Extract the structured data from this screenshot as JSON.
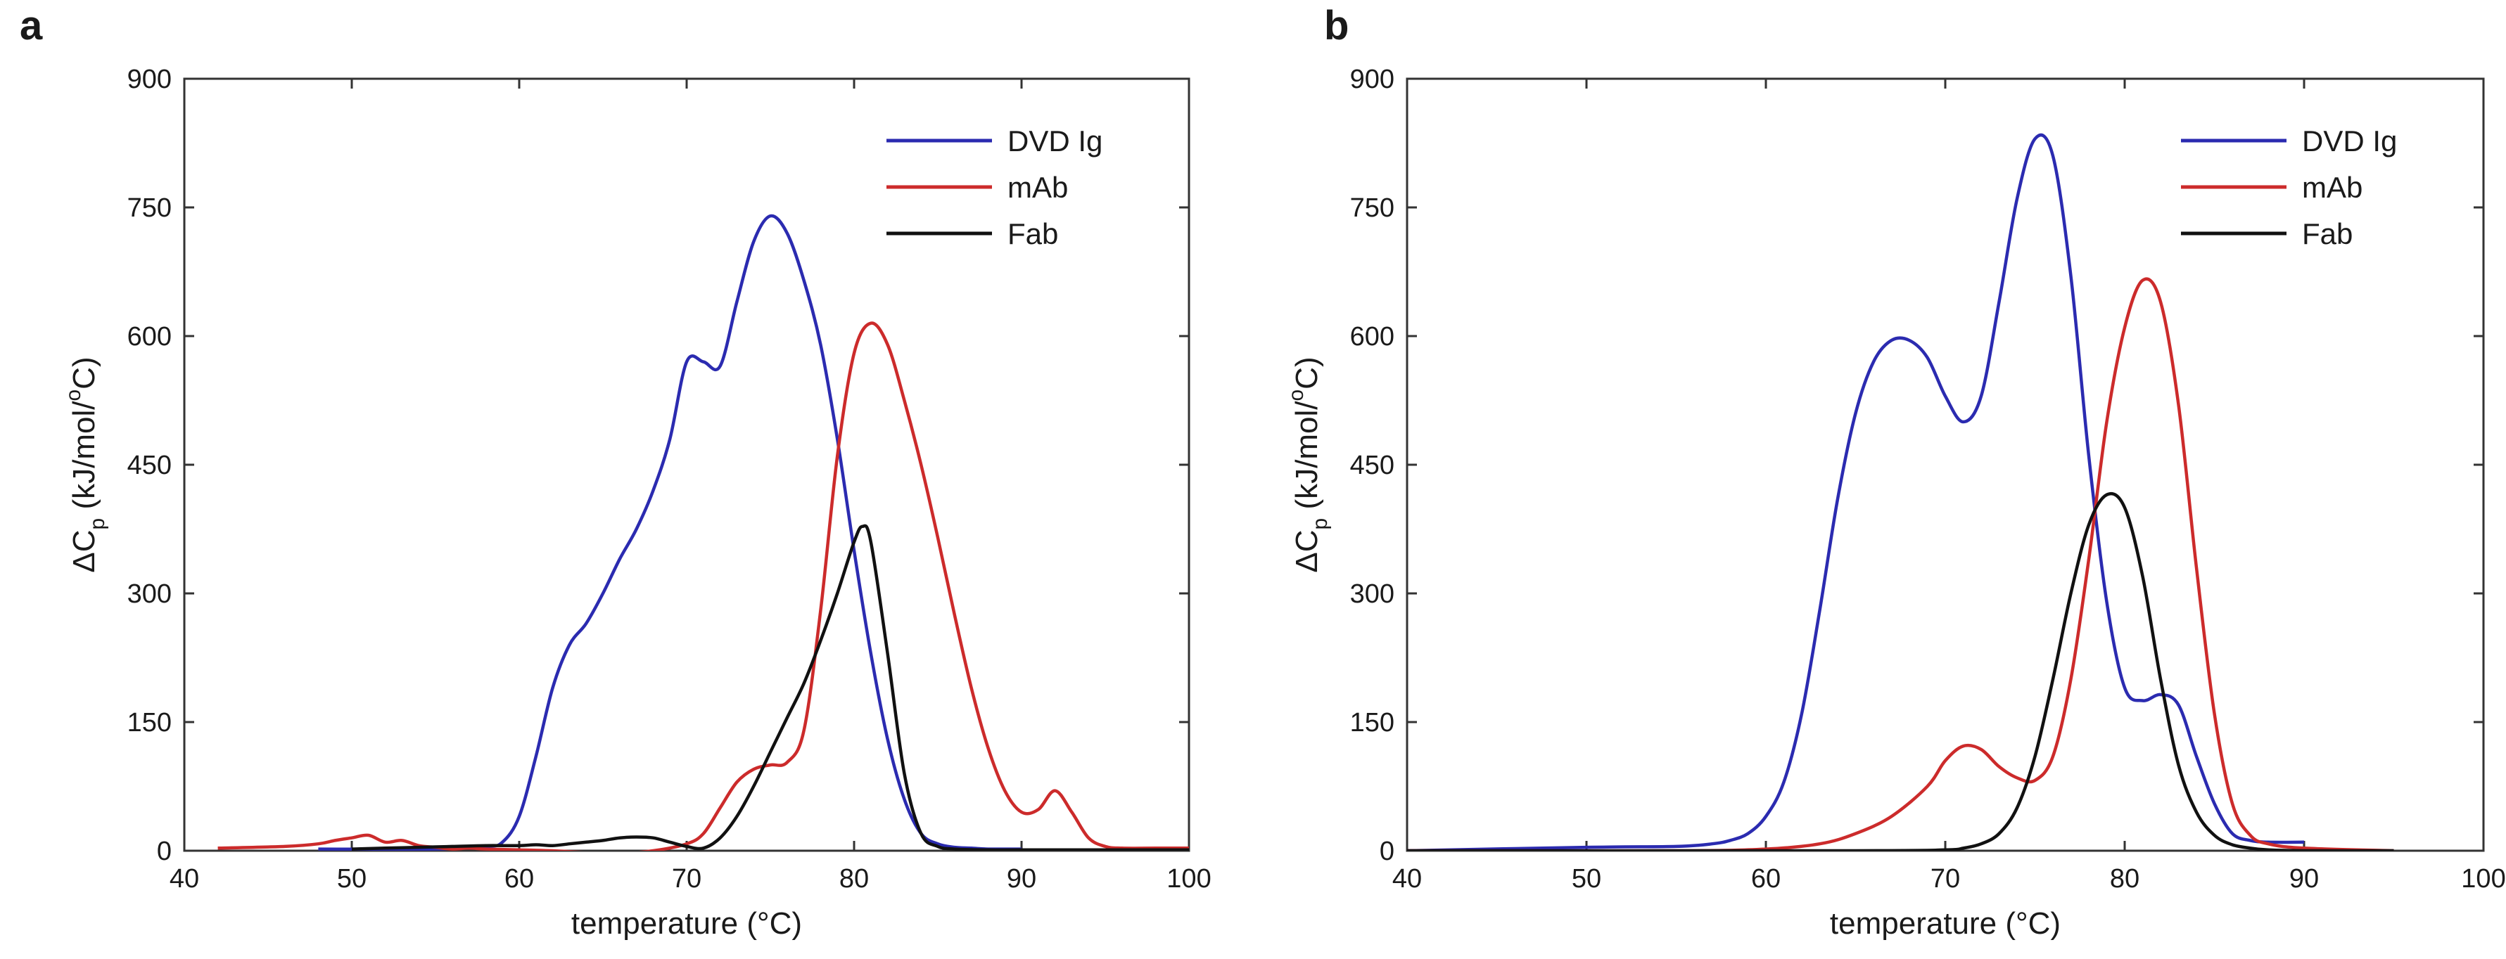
{
  "chart_data": [
    {
      "panel_label": "a",
      "type": "line",
      "xlabel": "temperature (°C)",
      "ylabel_parts": [
        "ΔC",
        "p",
        " (kJ/mol/",
        "o",
        "C)"
      ],
      "xlim": [
        40,
        100
      ],
      "ylim": [
        0,
        900
      ],
      "xticks": [
        40,
        50,
        60,
        70,
        80,
        90,
        100
      ],
      "yticks": [
        0,
        150,
        300,
        450,
        600,
        750,
        900
      ],
      "legend_position": "top-right",
      "series": [
        {
          "name": "DVD Ig",
          "color": "#2b2bb0",
          "x": [
            48,
            55,
            58,
            59,
            60,
            61,
            62,
            63,
            64,
            65,
            66,
            67,
            68,
            69,
            70,
            71,
            72,
            73,
            74,
            75,
            76,
            77,
            78,
            79,
            80,
            81,
            82,
            83,
            84,
            85,
            86,
            87,
            88,
            89,
            90
          ],
          "y": [
            2,
            2,
            5,
            10,
            40,
            110,
            190,
            240,
            265,
            300,
            340,
            375,
            420,
            480,
            570,
            570,
            565,
            640,
            710,
            740,
            720,
            665,
            590,
            480,
            350,
            230,
            130,
            60,
            20,
            8,
            4,
            3,
            2,
            2,
            2
          ]
        },
        {
          "name": "mAb",
          "color": "#cc2b2b",
          "x": [
            42,
            46,
            48,
            49,
            50,
            51,
            52,
            53,
            54,
            55,
            56,
            57,
            58,
            60,
            62,
            64,
            66,
            68,
            70,
            71,
            72,
            73,
            74,
            75,
            76,
            77,
            78,
            79,
            80,
            81,
            82,
            83,
            84,
            85,
            86,
            87,
            88,
            89,
            90,
            91,
            92,
            93,
            94,
            95,
            96,
            98,
            100
          ],
          "y": [
            3,
            5,
            8,
            12,
            15,
            18,
            10,
            12,
            6,
            4,
            2,
            3,
            2,
            1,
            0,
            -2,
            -3,
            0,
            8,
            20,
            50,
            80,
            95,
            100,
            103,
            140,
            280,
            460,
            580,
            615,
            590,
            525,
            450,
            365,
            275,
            190,
            120,
            70,
            45,
            48,
            70,
            45,
            15,
            5,
            3,
            3,
            3
          ],
          "style": "noisy-baseline"
        },
        {
          "name": "Fab",
          "color": "#111111",
          "x": [
            50,
            52,
            54,
            56,
            58,
            60,
            61,
            62,
            63,
            64,
            65,
            66,
            67,
            68,
            69,
            70,
            71,
            72,
            73,
            74,
            75,
            76,
            77,
            78,
            79,
            80,
            80.5,
            81,
            82,
            83,
            84,
            85,
            86,
            88,
            90,
            95,
            100
          ],
          "y": [
            2,
            3,
            4,
            5,
            6,
            6,
            7,
            6,
            8,
            10,
            12,
            15,
            16,
            15,
            10,
            5,
            3,
            15,
            40,
            75,
            115,
            155,
            195,
            245,
            300,
            360,
            378,
            360,
            230,
            90,
            20,
            5,
            2,
            1,
            1,
            1,
            1
          ],
          "style": "noisy-baseline"
        }
      ]
    },
    {
      "panel_label": "b",
      "type": "line",
      "xlabel": "temperature (°C)",
      "ylabel_parts": [
        "ΔC",
        "p",
        " (kJ/mol/",
        "o",
        "C)"
      ],
      "xlim": [
        40,
        100
      ],
      "ylim": [
        0,
        900
      ],
      "xticks": [
        40,
        50,
        60,
        70,
        80,
        90,
        100
      ],
      "yticks": [
        0,
        150,
        300,
        450,
        600,
        750,
        900
      ],
      "legend_position": "top-right",
      "series": [
        {
          "name": "DVD Ig",
          "color": "#2b2bb0",
          "x": [
            40,
            50,
            55,
            57,
            58,
            59,
            60,
            61,
            62,
            63,
            64,
            65,
            66,
            67,
            68,
            69,
            70,
            71,
            72,
            73,
            74,
            75,
            76,
            77,
            78,
            79,
            80,
            81,
            82,
            83,
            84,
            85,
            86,
            87,
            88,
            90
          ],
          "y": [
            0,
            4,
            5,
            8,
            12,
            20,
            40,
            80,
            160,
            280,
            410,
            510,
            570,
            595,
            595,
            575,
            530,
            500,
            530,
            640,
            760,
            830,
            810,
            670,
            460,
            290,
            190,
            175,
            182,
            170,
            110,
            55,
            20,
            12,
            10,
            10
          ]
        },
        {
          "name": "mAb",
          "color": "#cc2b2b",
          "x": [
            40,
            55,
            60,
            63,
            65,
            67,
            69,
            70,
            71,
            72,
            73,
            74,
            75,
            76,
            77,
            78,
            79,
            80,
            81,
            82,
            83,
            84,
            85,
            86,
            87,
            88,
            90,
            95
          ],
          "y": [
            0,
            0,
            2,
            8,
            20,
            40,
            75,
            105,
            122,
            118,
            98,
            85,
            82,
            110,
            200,
            340,
            500,
            610,
            665,
            640,
            520,
            330,
            160,
            55,
            18,
            8,
            3,
            0
          ]
        },
        {
          "name": "Fab",
          "color": "#111111",
          "x": [
            40,
            65,
            70,
            71,
            72,
            73,
            74,
            75,
            76,
            77,
            78,
            79,
            80,
            81,
            82,
            83,
            84,
            85,
            86,
            87,
            88,
            90,
            95
          ],
          "y": [
            0,
            0,
            1,
            3,
            8,
            20,
            50,
            110,
            200,
            300,
            380,
            415,
            400,
            320,
            200,
            100,
            45,
            18,
            7,
            3,
            1,
            0,
            0
          ]
        }
      ]
    }
  ]
}
